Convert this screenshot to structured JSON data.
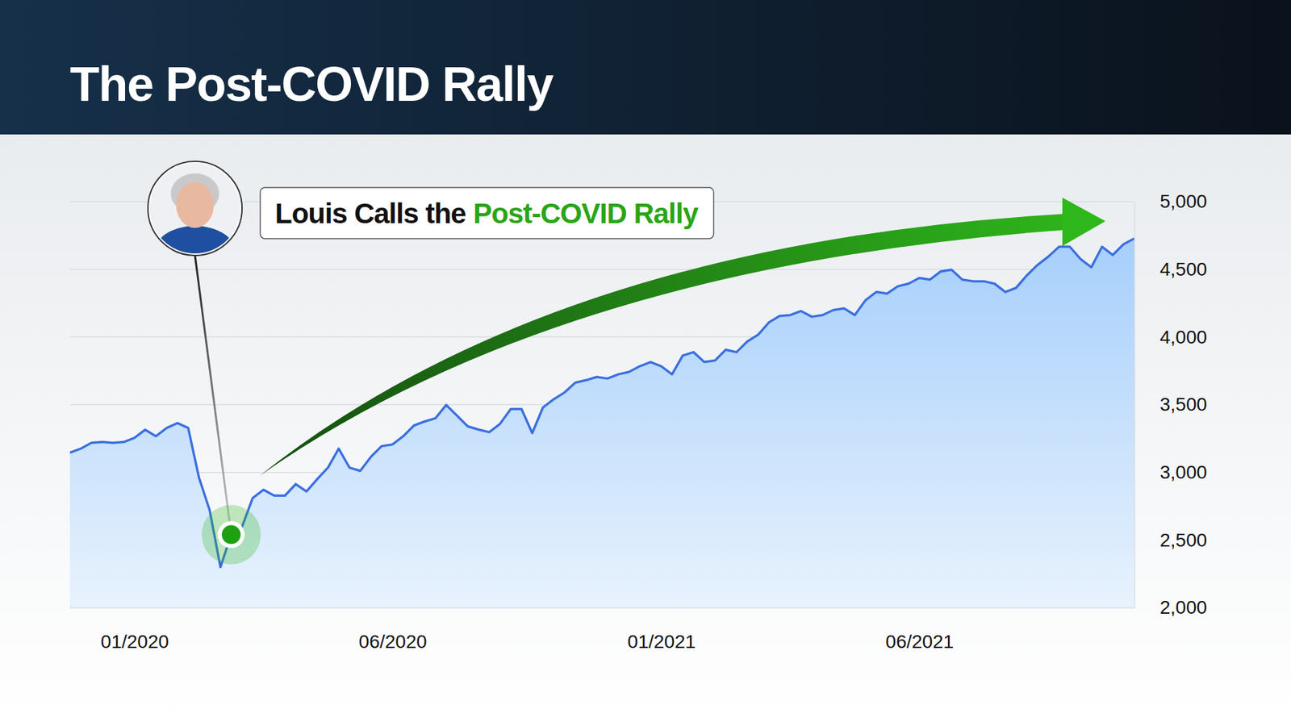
{
  "chart_data": {
    "type": "area",
    "title": "The Post-COVID Rally",
    "annotation": [
      "Louis Calls the",
      "Post-COVID Rally"
    ],
    "categories": [
      null,
      null,
      null,
      null,
      null,
      null,
      "01/2020",
      null,
      null,
      null,
      null,
      null,
      null,
      null,
      null,
      null,
      null,
      null,
      null,
      null,
      null,
      null,
      null,
      null,
      null,
      null,
      null,
      null,
      null,
      null,
      "06/2020",
      null,
      null,
      null,
      null,
      null,
      null,
      null,
      null,
      null,
      null,
      null,
      null,
      null,
      null,
      null,
      null,
      null,
      null,
      null,
      null,
      null,
      null,
      null,
      null,
      "01/2021",
      null,
      null,
      null,
      null,
      null,
      null,
      null,
      null,
      null,
      null,
      null,
      null,
      null,
      null,
      null,
      null,
      null,
      null,
      null,
      null,
      null,
      null,
      null,
      "06/2021",
      null,
      null,
      null,
      null,
      null,
      null,
      null,
      null,
      null,
      null,
      null,
      null,
      null,
      null,
      null,
      null,
      null,
      null,
      null,
      null
    ],
    "values": [
      3145,
      3175,
      3218,
      3224,
      3218,
      3224,
      3255,
      3315,
      3267,
      3328,
      3364,
      3328,
      2962,
      2719,
      2300,
      2540,
      2597,
      2810,
      2871,
      2828,
      2828,
      2913,
      2859,
      2950,
      3035,
      3175,
      3035,
      3011,
      3115,
      3194,
      3206,
      3267,
      3346,
      3376,
      3400,
      3498,
      3419,
      3340,
      3316,
      3297,
      3358,
      3468,
      3468,
      3290,
      3480,
      3540,
      3590,
      3663,
      3681,
      3705,
      3693,
      3724,
      3742,
      3784,
      3815,
      3784,
      3724,
      3863,
      3888,
      3815,
      3827,
      3906,
      3888,
      3967,
      4016,
      4107,
      4156,
      4162,
      4192,
      4150,
      4162,
      4199,
      4211,
      4162,
      4272,
      4333,
      4321,
      4375,
      4394,
      4436,
      4424,
      4485,
      4497,
      4424,
      4412,
      4412,
      4394,
      4333,
      4363,
      4455,
      4533,
      4594,
      4667,
      4667,
      4576,
      4515,
      4667,
      4606,
      4686,
      4728
    ],
    "color": "#3b6fe0",
    "ylim": [
      2000,
      5000
    ],
    "yticks": [
      {
        "value": 2000,
        "label": "2,000"
      },
      {
        "value": 2500,
        "label": "2,500"
      },
      {
        "value": 3000,
        "label": "3,000"
      },
      {
        "value": 3500,
        "label": "3,500"
      },
      {
        "value": 4000,
        "label": "4,000"
      },
      {
        "value": 4500,
        "label": "4,500"
      },
      {
        "value": 5000,
        "label": "5,000"
      }
    ],
    "grid": true
  }
}
